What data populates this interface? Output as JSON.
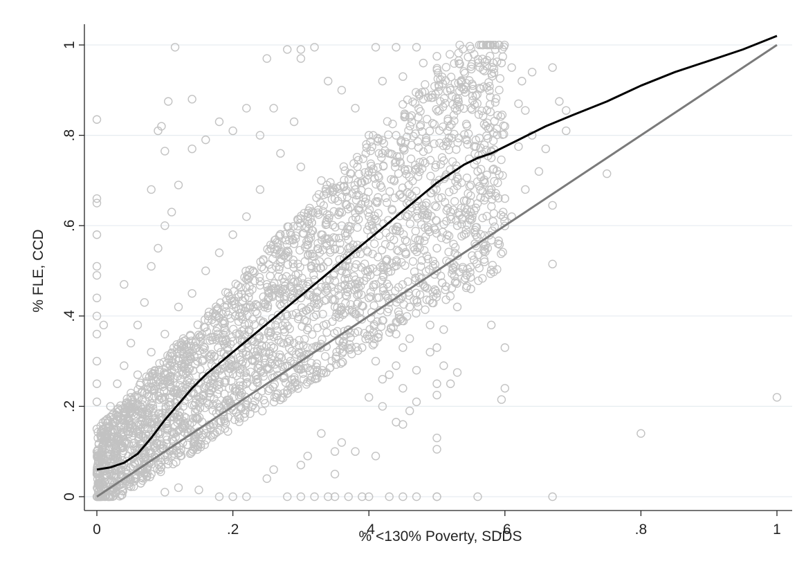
{
  "chart_data": {
    "type": "scatter",
    "title": "",
    "xlabel": "% <130% Poverty, SDDS",
    "ylabel": "% FLE, CCD",
    "xlim": [
      0,
      1
    ],
    "ylim": [
      0,
      1
    ],
    "grid": true,
    "legend": "none",
    "x_ticks": [
      {
        "value": 0,
        "label": "0"
      },
      {
        "value": 0.2,
        "label": ".2"
      },
      {
        "value": 0.4,
        "label": ".4"
      },
      {
        "value": 0.6,
        "label": ".6"
      },
      {
        "value": 0.8,
        "label": ".8"
      },
      {
        "value": 1,
        "label": "1"
      }
    ],
    "y_ticks": [
      {
        "value": 0,
        "label": "0"
      },
      {
        "value": 0.2,
        "label": ".2"
      },
      {
        "value": 0.4,
        "label": ".4"
      },
      {
        "value": 0.6,
        "label": ".6"
      },
      {
        "value": 0.8,
        "label": ".8"
      },
      {
        "value": 1,
        "label": "1"
      }
    ],
    "colors": {
      "markers": "#c2c2c2",
      "fit_line": "#000000",
      "reference_line": "#7a7a7a",
      "grid": "#e6ecf0",
      "axis": "#222222"
    },
    "series": [
      {
        "type": "scatter",
        "points": [
          [
            0.0,
            0.835
          ],
          [
            0.0,
            0.66
          ],
          [
            0.0,
            0.65
          ],
          [
            0.0,
            0.58
          ],
          [
            0.0,
            0.51
          ],
          [
            0.0,
            0.49
          ],
          [
            0.0,
            0.44
          ],
          [
            0.0,
            0.4
          ],
          [
            0.0,
            0.36
          ],
          [
            0.0,
            0.3
          ],
          [
            0.0,
            0.25
          ],
          [
            0.0,
            0.21
          ],
          [
            0.0,
            0.15
          ],
          [
            0.0,
            0.1
          ],
          [
            0.0,
            0.05
          ],
          [
            0.0,
            0.0
          ],
          [
            0.01,
            0.38
          ],
          [
            0.01,
            0.15
          ],
          [
            0.02,
            0.12
          ],
          [
            0.04,
            0.47
          ],
          [
            0.115,
            0.995
          ],
          [
            0.14,
            0.88
          ],
          [
            0.105,
            0.875
          ],
          [
            0.095,
            0.82
          ],
          [
            0.09,
            0.81
          ],
          [
            0.1,
            0.765
          ],
          [
            0.08,
            0.68
          ],
          [
            0.2,
            0.0
          ],
          [
            0.18,
            0.0
          ],
          [
            0.22,
            0.0
          ],
          [
            0.28,
            0.0
          ],
          [
            0.3,
            0.0
          ],
          [
            0.32,
            0.0
          ],
          [
            0.34,
            0.0
          ],
          [
            0.35,
            0.0
          ],
          [
            0.37,
            0.0
          ],
          [
            0.39,
            0.0
          ],
          [
            0.4,
            0.0
          ],
          [
            0.5,
            0.0
          ],
          [
            0.56,
            0.0
          ],
          [
            0.67,
            0.0
          ],
          [
            0.32,
            0.995
          ],
          [
            0.41,
            0.995
          ],
          [
            0.44,
            0.995
          ],
          [
            0.47,
            0.995
          ],
          [
            0.28,
            0.99
          ],
          [
            0.3,
            0.99
          ],
          [
            0.25,
            0.97
          ],
          [
            0.3,
            0.97
          ],
          [
            0.5,
            0.975
          ],
          [
            0.595,
            0.96
          ],
          [
            0.64,
            0.94
          ],
          [
            0.67,
            0.95
          ],
          [
            0.61,
            0.95
          ],
          [
            0.68,
            0.875
          ],
          [
            0.69,
            0.855
          ],
          [
            0.69,
            0.81
          ],
          [
            0.625,
            0.92
          ],
          [
            0.63,
            0.855
          ],
          [
            0.62,
            0.775
          ],
          [
            0.75,
            0.715
          ],
          [
            0.67,
            0.645
          ],
          [
            0.67,
            0.515
          ],
          [
            0.6,
            0.66
          ],
          [
            0.58,
            0.68
          ],
          [
            0.58,
            0.38
          ],
          [
            0.6,
            0.33
          ],
          [
            0.6,
            0.24
          ],
          [
            0.595,
            0.215
          ],
          [
            0.55,
            0.69
          ],
          [
            0.54,
            0.655
          ],
          [
            0.53,
            0.6
          ],
          [
            0.5,
            0.5
          ],
          [
            0.5,
            0.45
          ],
          [
            0.49,
            0.38
          ],
          [
            0.5,
            0.33
          ],
          [
            0.51,
            0.29
          ],
          [
            0.5,
            0.25
          ],
          [
            0.5,
            0.225
          ],
          [
            0.5,
            0.13
          ],
          [
            0.5,
            0.105
          ],
          [
            0.52,
            0.25
          ],
          [
            0.53,
            0.275
          ],
          [
            0.47,
            0.21
          ],
          [
            0.46,
            0.19
          ],
          [
            0.45,
            0.16
          ],
          [
            0.44,
            0.165
          ],
          [
            0.42,
            0.2
          ],
          [
            0.41,
            0.09
          ],
          [
            0.38,
            0.1
          ],
          [
            0.35,
            0.05
          ],
          [
            0.8,
            0.14
          ],
          [
            1.0,
            0.22
          ],
          [
            0.5,
            0.0
          ],
          [
            0.43,
            0.0
          ],
          [
            0.45,
            0.0
          ],
          [
            0.47,
            0.0
          ],
          [
            0.15,
            0.015
          ],
          [
            0.12,
            0.02
          ],
          [
            0.1,
            0.01
          ],
          [
            0.25,
            0.04
          ],
          [
            0.26,
            0.06
          ],
          [
            0.3,
            0.07
          ],
          [
            0.31,
            0.09
          ],
          [
            0.33,
            0.14
          ],
          [
            0.35,
            0.1
          ],
          [
            0.36,
            0.12
          ],
          [
            0.4,
            0.22
          ],
          [
            0.42,
            0.26
          ],
          [
            0.44,
            0.29
          ],
          [
            0.45,
            0.33
          ],
          [
            0.46,
            0.35
          ],
          [
            0.43,
            0.43
          ],
          [
            0.41,
            0.47
          ],
          [
            0.37,
            0.55
          ],
          [
            0.36,
            0.6
          ],
          [
            0.35,
            0.66
          ],
          [
            0.33,
            0.7
          ],
          [
            0.3,
            0.73
          ],
          [
            0.27,
            0.76
          ],
          [
            0.24,
            0.8
          ],
          [
            0.22,
            0.86
          ],
          [
            0.2,
            0.81
          ],
          [
            0.18,
            0.83
          ],
          [
            0.16,
            0.79
          ],
          [
            0.14,
            0.77
          ],
          [
            0.12,
            0.69
          ],
          [
            0.11,
            0.63
          ],
          [
            0.1,
            0.6
          ],
          [
            0.09,
            0.55
          ],
          [
            0.08,
            0.51
          ],
          [
            0.07,
            0.43
          ],
          [
            0.06,
            0.38
          ],
          [
            0.05,
            0.34
          ],
          [
            0.04,
            0.29
          ],
          [
            0.03,
            0.25
          ],
          [
            0.02,
            0.2
          ],
          [
            0.03,
            0.08
          ],
          [
            0.06,
            0.06
          ],
          [
            0.08,
            0.05
          ],
          [
            0.11,
            0.09
          ],
          [
            0.14,
            0.1
          ],
          [
            0.16,
            0.14
          ],
          [
            0.18,
            0.19
          ],
          [
            0.2,
            0.2
          ],
          [
            0.22,
            0.25
          ],
          [
            0.24,
            0.29
          ],
          [
            0.26,
            0.33
          ],
          [
            0.28,
            0.4
          ],
          [
            0.3,
            0.44
          ],
          [
            0.32,
            0.48
          ],
          [
            0.34,
            0.52
          ],
          [
            0.36,
            0.5
          ],
          [
            0.38,
            0.47
          ],
          [
            0.4,
            0.44
          ],
          [
            0.42,
            0.39
          ],
          [
            0.44,
            0.36
          ],
          [
            0.46,
            0.42
          ],
          [
            0.48,
            0.47
          ],
          [
            0.5,
            0.55
          ],
          [
            0.52,
            0.62
          ],
          [
            0.54,
            0.58
          ],
          [
            0.56,
            0.72
          ],
          [
            0.58,
            0.75
          ],
          [
            0.6,
            0.82
          ],
          [
            0.62,
            0.87
          ],
          [
            0.64,
            0.8
          ],
          [
            0.66,
            0.77
          ],
          [
            0.55,
            0.86
          ],
          [
            0.52,
            0.9
          ],
          [
            0.48,
            0.88
          ],
          [
            0.46,
            0.84
          ],
          [
            0.44,
            0.8
          ],
          [
            0.42,
            0.76
          ],
          [
            0.4,
            0.72
          ],
          [
            0.38,
            0.68
          ],
          [
            0.4,
            0.8
          ],
          [
            0.38,
            0.86
          ],
          [
            0.36,
            0.9
          ],
          [
            0.34,
            0.92
          ],
          [
            0.42,
            0.92
          ],
          [
            0.45,
            0.93
          ],
          [
            0.48,
            0.96
          ],
          [
            0.29,
            0.83
          ],
          [
            0.26,
            0.86
          ],
          [
            0.24,
            0.68
          ],
          [
            0.22,
            0.62
          ],
          [
            0.2,
            0.58
          ],
          [
            0.18,
            0.54
          ],
          [
            0.16,
            0.5
          ],
          [
            0.14,
            0.45
          ],
          [
            0.12,
            0.42
          ],
          [
            0.1,
            0.36
          ],
          [
            0.08,
            0.32
          ],
          [
            0.06,
            0.27
          ],
          [
            0.05,
            0.22
          ],
          [
            0.07,
            0.16
          ],
          [
            0.09,
            0.14
          ],
          [
            0.12,
            0.17
          ],
          [
            0.15,
            0.22
          ],
          [
            0.17,
            0.26
          ],
          [
            0.19,
            0.31
          ],
          [
            0.21,
            0.36
          ],
          [
            0.23,
            0.42
          ],
          [
            0.25,
            0.47
          ],
          [
            0.27,
            0.52
          ],
          [
            0.29,
            0.56
          ],
          [
            0.31,
            0.62
          ],
          [
            0.33,
            0.58
          ],
          [
            0.35,
            0.42
          ],
          [
            0.37,
            0.37
          ],
          [
            0.39,
            0.33
          ],
          [
            0.41,
            0.3
          ],
          [
            0.43,
            0.27
          ],
          [
            0.45,
            0.24
          ],
          [
            0.47,
            0.28
          ],
          [
            0.49,
            0.32
          ],
          [
            0.51,
            0.37
          ],
          [
            0.53,
            0.42
          ],
          [
            0.55,
            0.46
          ],
          [
            0.57,
            0.52
          ],
          [
            0.59,
            0.56
          ],
          [
            0.61,
            0.62
          ],
          [
            0.63,
            0.68
          ],
          [
            0.65,
            0.72
          ]
        ]
      },
      {
        "type": "line",
        "role": "fitted curve",
        "points": [
          [
            0.0,
            0.06
          ],
          [
            0.02,
            0.065
          ],
          [
            0.04,
            0.075
          ],
          [
            0.06,
            0.095
          ],
          [
            0.08,
            0.13
          ],
          [
            0.1,
            0.17
          ],
          [
            0.12,
            0.205
          ],
          [
            0.14,
            0.24
          ],
          [
            0.16,
            0.27
          ],
          [
            0.18,
            0.295
          ],
          [
            0.2,
            0.32
          ],
          [
            0.22,
            0.345
          ],
          [
            0.24,
            0.37
          ],
          [
            0.26,
            0.395
          ],
          [
            0.28,
            0.42
          ],
          [
            0.3,
            0.445
          ],
          [
            0.32,
            0.47
          ],
          [
            0.34,
            0.495
          ],
          [
            0.36,
            0.52
          ],
          [
            0.38,
            0.545
          ],
          [
            0.4,
            0.57
          ],
          [
            0.42,
            0.595
          ],
          [
            0.44,
            0.62
          ],
          [
            0.46,
            0.645
          ],
          [
            0.48,
            0.67
          ],
          [
            0.5,
            0.695
          ],
          [
            0.52,
            0.715
          ],
          [
            0.54,
            0.735
          ],
          [
            0.56,
            0.75
          ],
          [
            0.58,
            0.76
          ],
          [
            0.6,
            0.775
          ],
          [
            0.62,
            0.79
          ],
          [
            0.64,
            0.805
          ],
          [
            0.66,
            0.82
          ],
          [
            0.7,
            0.845
          ],
          [
            0.75,
            0.875
          ],
          [
            0.8,
            0.91
          ],
          [
            0.85,
            0.94
          ],
          [
            0.9,
            0.965
          ],
          [
            0.95,
            0.99
          ],
          [
            1.0,
            1.02
          ]
        ]
      },
      {
        "type": "line",
        "role": "reference line",
        "points": [
          [
            0,
            0
          ],
          [
            1,
            1
          ]
        ]
      }
    ]
  }
}
